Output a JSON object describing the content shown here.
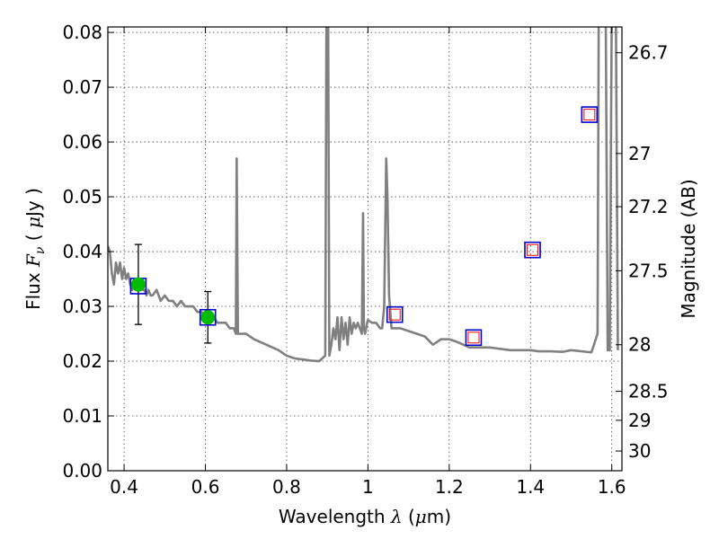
{
  "chart_data": {
    "type": "scatter",
    "xlabel": "Wavelength  λ (μm)",
    "ylabel": "Flux  F_ν  ( μJy )",
    "y2label": "Magnitude (AB)",
    "xlim": [
      0.36,
      1.625
    ],
    "ylim": [
      0.0,
      0.081
    ],
    "grid": true,
    "x_ticks": [
      0.4,
      0.6,
      0.8,
      1.0,
      1.2,
      1.4,
      1.6
    ],
    "x_tick_labels": [
      "0.4",
      "0.6",
      "0.8",
      "1",
      "1.2",
      "1.4",
      "1.6"
    ],
    "y_ticks": [
      0.0,
      0.01,
      0.02,
      0.03,
      0.04,
      0.05,
      0.06,
      0.07,
      0.08
    ],
    "y_tick_labels": [
      "0.00",
      "0.01",
      "0.02",
      "0.03",
      "0.04",
      "0.05",
      "0.06",
      "0.07",
      "0.08"
    ],
    "y2_ticks": [
      {
        "label": "26.7",
        "flux": 0.0763
      },
      {
        "label": "27",
        "flux": 0.0579
      },
      {
        "label": "27.2",
        "flux": 0.0482
      },
      {
        "label": "27.5",
        "flux": 0.0365
      },
      {
        "label": "28",
        "flux": 0.023
      },
      {
        "label": "28.5",
        "flux": 0.0145
      },
      {
        "label": "29",
        "flux": 0.0092
      },
      {
        "label": "30",
        "flux": 0.0036
      }
    ],
    "sed_model": {
      "color": "#808080",
      "x": [
        0.36,
        0.365,
        0.37,
        0.375,
        0.38,
        0.385,
        0.39,
        0.395,
        0.4,
        0.405,
        0.41,
        0.415,
        0.42,
        0.425,
        0.43,
        0.435,
        0.44,
        0.445,
        0.45,
        0.455,
        0.46,
        0.465,
        0.47,
        0.48,
        0.49,
        0.5,
        0.51,
        0.52,
        0.53,
        0.54,
        0.55,
        0.56,
        0.57,
        0.58,
        0.59,
        0.6,
        0.61,
        0.62,
        0.63,
        0.64,
        0.65,
        0.66,
        0.67,
        0.675,
        0.677,
        0.68,
        0.69,
        0.7,
        0.72,
        0.75,
        0.78,
        0.8,
        0.82,
        0.84,
        0.86,
        0.88,
        0.895,
        0.898,
        0.9,
        0.902,
        0.905,
        0.91,
        0.915,
        0.92,
        0.925,
        0.93,
        0.935,
        0.94,
        0.945,
        0.95,
        0.955,
        0.96,
        0.965,
        0.97,
        0.975,
        0.98,
        0.985,
        0.988,
        0.99,
        0.993,
        0.998,
        1.0,
        1.01,
        1.02,
        1.03,
        1.035,
        1.04,
        1.045,
        1.048,
        1.052,
        1.058,
        1.065,
        1.07,
        1.08,
        1.1,
        1.12,
        1.14,
        1.16,
        1.18,
        1.2,
        1.22,
        1.25,
        1.28,
        1.3,
        1.32,
        1.35,
        1.38,
        1.4,
        1.42,
        1.45,
        1.48,
        1.5,
        1.55,
        1.565,
        1.568,
        1.572,
        1.578,
        1.585,
        1.59,
        1.595,
        1.6,
        1.605,
        1.61,
        1.615
      ],
      "y": [
        0.041,
        0.04,
        0.036,
        0.034,
        0.038,
        0.036,
        0.038,
        0.035,
        0.037,
        0.035,
        0.036,
        0.034,
        0.033,
        0.034,
        0.033,
        0.034,
        0.034,
        0.033,
        0.033,
        0.032,
        0.033,
        0.032,
        0.032,
        0.033,
        0.031,
        0.032,
        0.031,
        0.031,
        0.03,
        0.031,
        0.03,
        0.03,
        0.03,
        0.029,
        0.029,
        0.028,
        0.029,
        0.028,
        0.027,
        0.027,
        0.027,
        0.026,
        0.026,
        0.025,
        0.057,
        0.025,
        0.025,
        0.025,
        0.024,
        0.023,
        0.022,
        0.021,
        0.0205,
        0.0203,
        0.0201,
        0.02,
        0.021,
        0.085,
        0.085,
        0.085,
        0.021,
        0.023,
        0.026,
        0.024,
        0.028,
        0.022,
        0.028,
        0.024,
        0.027,
        0.023,
        0.028,
        0.025,
        0.027,
        0.026,
        0.027,
        0.026,
        0.025,
        0.047,
        0.026,
        0.025,
        0.027,
        0.0275,
        0.027,
        0.027,
        0.026,
        0.026,
        0.03,
        0.057,
        0.05,
        0.032,
        0.026,
        0.026,
        0.026,
        0.026,
        0.0255,
        0.025,
        0.0245,
        0.023,
        0.024,
        0.024,
        0.0235,
        0.0225,
        0.0225,
        0.0225,
        0.0223,
        0.022,
        0.022,
        0.022,
        0.0218,
        0.0218,
        0.0217,
        0.022,
        0.0216,
        0.025,
        0.085,
        0.085,
        0.085,
        0.085,
        0.022,
        0.022,
        0.085,
        0.085,
        0.085,
        0.022
      ]
    },
    "observed_points": [
      {
        "x": 0.435,
        "y": 0.034,
        "yerr": 0.0073,
        "color": "#00bb00"
      },
      {
        "x": 0.606,
        "y": 0.028,
        "yerr": 0.0047,
        "color": "#00bb00"
      }
    ],
    "model_squares_blue": [
      {
        "x": 0.435,
        "y": 0.0337
      },
      {
        "x": 0.606,
        "y": 0.028
      },
      {
        "x": 1.066,
        "y": 0.0285
      },
      {
        "x": 1.26,
        "y": 0.0243
      },
      {
        "x": 1.405,
        "y": 0.0403
      },
      {
        "x": 1.545,
        "y": 0.065
      }
    ],
    "upper_limit_squares_red": [
      {
        "x": 1.066,
        "y": 0.0285
      },
      {
        "x": 1.26,
        "y": 0.0243
      },
      {
        "x": 1.405,
        "y": 0.0403
      },
      {
        "x": 1.545,
        "y": 0.065
      }
    ],
    "colors": {
      "model_square": "#0000cc",
      "upper_limit_square": "#ff0000",
      "grid": "#444444"
    }
  }
}
